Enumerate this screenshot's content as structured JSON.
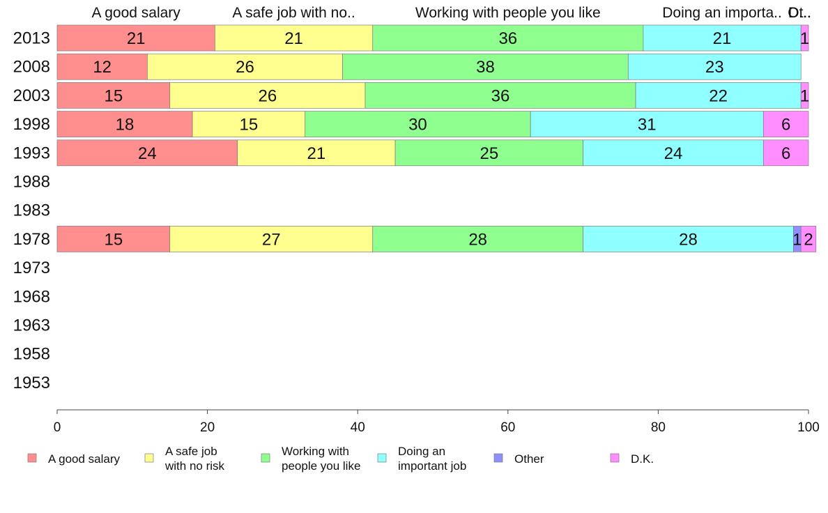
{
  "chart_data": {
    "type": "bar",
    "orientation": "horizontal",
    "stacked": true,
    "xlim": [
      0,
      100
    ],
    "x_ticks": [
      "0",
      "20",
      "40",
      "60",
      "80",
      "100"
    ],
    "categories": [
      "2013",
      "2008",
      "2003",
      "1998",
      "1993",
      "1988",
      "1983",
      "1978",
      "1973",
      "1968",
      "1963",
      "1958",
      "1953"
    ],
    "series": [
      {
        "name": "A good salary",
        "legend_lines": [
          "A good salary"
        ],
        "top_label": "A good salary",
        "color": "#ff8f8f",
        "values": [
          21,
          12,
          15,
          18,
          24,
          null,
          null,
          15,
          null,
          null,
          null,
          null,
          null
        ]
      },
      {
        "name": "A safe job with no risk",
        "legend_lines": [
          "A safe job",
          "with no risk"
        ],
        "top_label": "A safe job with no..",
        "color": "#ffff8f",
        "values": [
          21,
          26,
          26,
          15,
          21,
          null,
          null,
          27,
          null,
          null,
          null,
          null,
          null
        ]
      },
      {
        "name": "Working with people you like",
        "legend_lines": [
          "Working with",
          "people you like"
        ],
        "top_label": "Working with people you like",
        "color": "#8fff8f",
        "values": [
          36,
          38,
          36,
          30,
          25,
          null,
          null,
          28,
          null,
          null,
          null,
          null,
          null
        ]
      },
      {
        "name": "Doing an important job",
        "legend_lines": [
          "Doing an",
          "important job"
        ],
        "top_label": "Doing an importa..",
        "color": "#8fffff",
        "values": [
          21,
          23,
          22,
          31,
          24,
          null,
          null,
          28,
          null,
          null,
          null,
          null,
          null
        ]
      },
      {
        "name": "Other",
        "legend_lines": [
          "Other"
        ],
        "top_label": "Ot..",
        "color": "#8f8fff",
        "values": [
          0,
          0,
          0,
          0,
          0,
          null,
          null,
          1,
          null,
          null,
          null,
          null,
          null
        ]
      },
      {
        "name": "D.K.",
        "legend_lines": [
          "D.K."
        ],
        "top_label": "D...",
        "color": "#ff8fff",
        "values": [
          1,
          0,
          1,
          6,
          6,
          null,
          null,
          2,
          null,
          null,
          null,
          null,
          null
        ]
      }
    ],
    "top_label_row": 0,
    "legend_placement": "bottom",
    "grid": false
  }
}
